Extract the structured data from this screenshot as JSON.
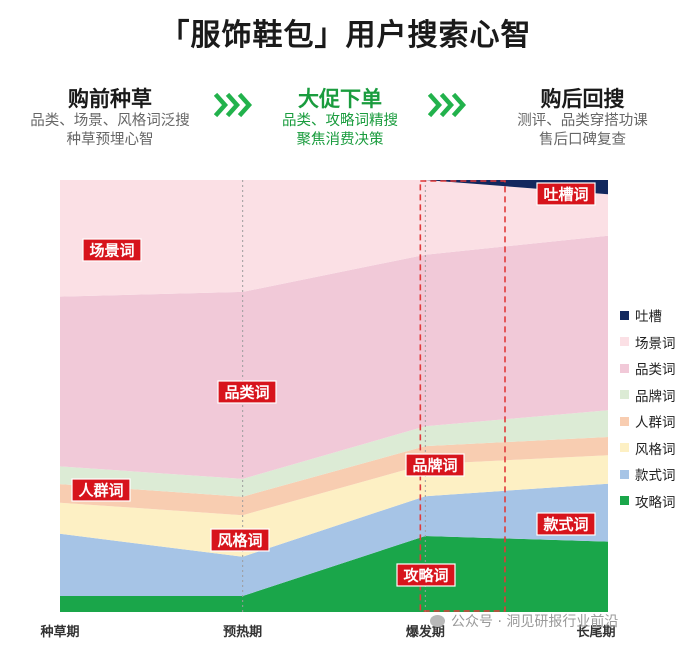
{
  "title": "「服饰鞋包」用户搜索心智",
  "stages": [
    {
      "heading": "购前种草",
      "lines": [
        "品类、场景、风格词泛搜",
        "种草预埋心智"
      ]
    },
    {
      "heading": "大促下单",
      "lines": [
        "品类、攻略词精搜",
        "聚焦消费决策"
      ]
    },
    {
      "heading": "购后回搜",
      "lines": [
        "测评、品类穿搭功课",
        "售后口碑复查"
      ]
    }
  ],
  "watermark": "公众号 · 洞见研报行业前沿",
  "chart_data": {
    "type": "area",
    "stacked": true,
    "normalized": true,
    "x": [
      "种草期",
      "预热期",
      "爆发期",
      "长尾期"
    ],
    "highlight_range": [
      "爆发期",
      "长尾期"
    ],
    "legend_position": "right",
    "series": [
      {
        "name": "攻略词",
        "color": "#1aa64a",
        "values": [
          3.7,
          3.7,
          17.6,
          16.3
        ]
      },
      {
        "name": "款式词",
        "color": "#a6c4e6",
        "values": [
          14.4,
          9.1,
          9.2,
          13.4
        ]
      },
      {
        "name": "风格词",
        "color": "#fdf0c4",
        "values": [
          7.2,
          9.6,
          7.4,
          6.6
        ]
      },
      {
        "name": "人群词",
        "color": "#f8cdb1",
        "values": [
          4.3,
          4.3,
          4.2,
          4.2
        ]
      },
      {
        "name": "品牌词",
        "color": "#dcebd5",
        "values": [
          4.1,
          4.1,
          4.6,
          6.2
        ]
      },
      {
        "name": "品类词",
        "color": "#f1c9d8",
        "values": [
          39.3,
          43.3,
          39.7,
          40.4
        ]
      },
      {
        "name": "场景词",
        "color": "#fbe0e5",
        "values": [
          27.0,
          25.9,
          17.3,
          9.6
        ]
      },
      {
        "name": "吐槽",
        "color": "#12285e",
        "values": [
          0,
          0,
          0,
          3.3
        ]
      }
    ],
    "annotations": [
      {
        "text": "场景词",
        "series": "场景词"
      },
      {
        "text": "品类词",
        "series": "品类词"
      },
      {
        "text": "人群词",
        "series": "人群词"
      },
      {
        "text": "风格词",
        "series": "风格词"
      },
      {
        "text": "品牌词",
        "series": "品牌词"
      },
      {
        "text": "款式词",
        "series": "款式词"
      },
      {
        "text": "攻略词",
        "series": "攻略词"
      },
      {
        "text": "吐槽词",
        "series": "吐槽"
      }
    ]
  }
}
